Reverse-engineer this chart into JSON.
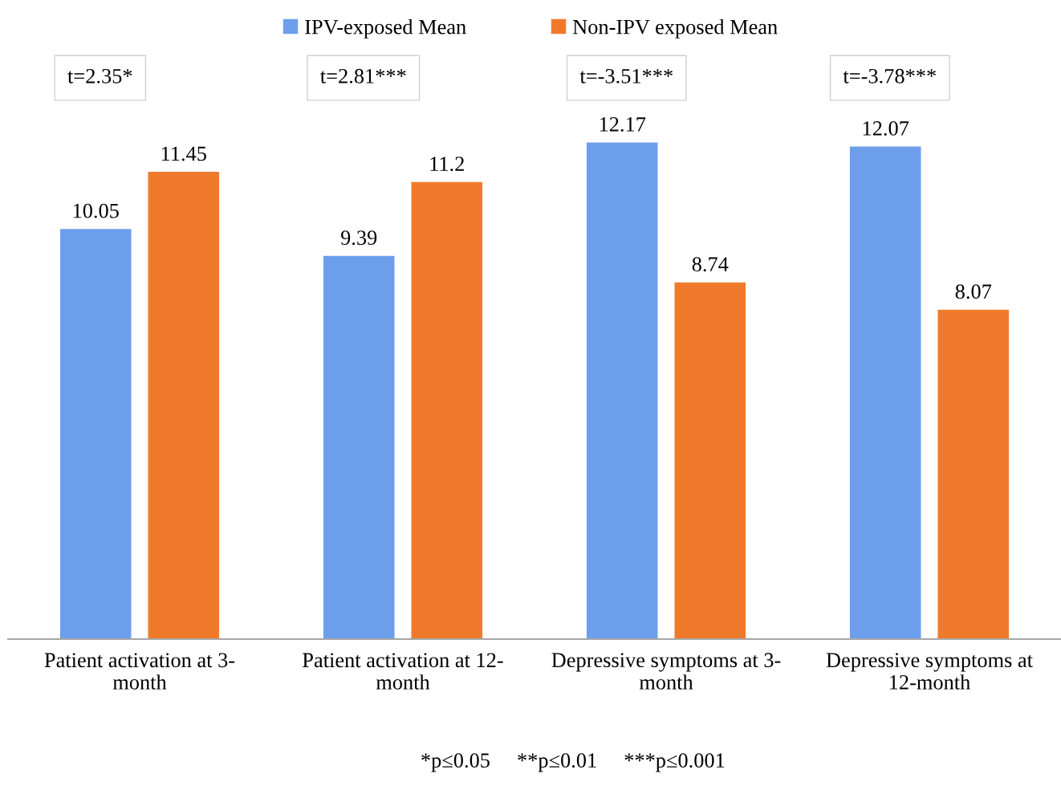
{
  "chart_data": {
    "type": "bar",
    "categories": [
      "Patient activation at 3-\nmonth",
      "Patient activation at 12-\nmonth",
      "Depressive symptoms at 3-\nmonth",
      "Depressive symptoms at\n12-month"
    ],
    "series": [
      {
        "name": "IPV-exposed Mean",
        "color": "#6d9eeb",
        "values": [
          10.05,
          9.39,
          12.17,
          12.07
        ]
      },
      {
        "name": "Non-IPV exposed Mean",
        "color": "#f07a2c",
        "values": [
          11.45,
          11.2,
          8.74,
          8.07
        ]
      }
    ],
    "data_labels": true,
    "legend": "top",
    "grid": false,
    "annotations": [
      "t=2.35*",
      "t=2.81***",
      "t=-3.51***",
      "t=-3.78***",
      "*p≤0.05     **p≤0.01     ***p≤0.001"
    ]
  }
}
